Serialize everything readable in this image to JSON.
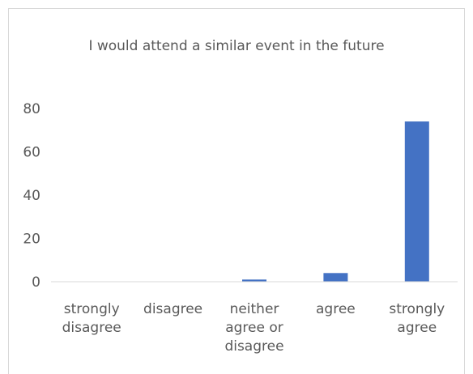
{
  "chart_data": {
    "type": "bar",
    "title": "I would attend a similar event in the future",
    "categories": [
      "strongly disagree",
      "disagree",
      "neither agree or disagree",
      "agree",
      "strongly agree"
    ],
    "values": [
      0,
      0,
      1,
      4,
      74
    ],
    "color": "#4472c4",
    "ylim": [
      0,
      80
    ],
    "yticks": [
      0,
      20,
      40,
      60,
      80
    ],
    "grid": false
  }
}
